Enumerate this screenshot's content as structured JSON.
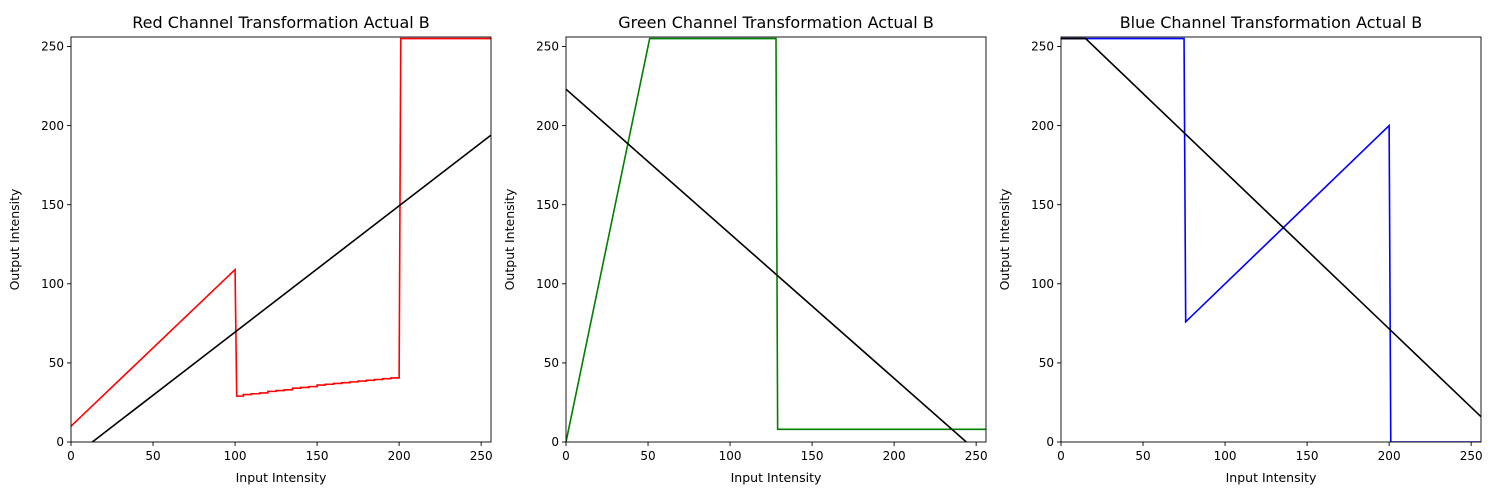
{
  "chart_data": [
    {
      "type": "line",
      "title": "Red Channel Transformation Actual B",
      "xlabel": "Input Intensity",
      "ylabel": "Output Intensity",
      "xlim": [
        0,
        256
      ],
      "ylim": [
        0,
        256
      ],
      "xticks": [
        0,
        50,
        100,
        150,
        200,
        250
      ],
      "yticks": [
        0,
        50,
        100,
        150,
        200,
        250
      ],
      "grid": false,
      "series": [
        {
          "color": "#ff0000",
          "x": [
            0,
            100,
            101,
            105,
            105,
            110,
            110,
            115,
            115,
            120,
            120,
            125,
            125,
            130,
            130,
            135,
            135,
            140,
            140,
            145,
            145,
            150,
            150,
            155,
            155,
            160,
            160,
            165,
            165,
            170,
            170,
            175,
            175,
            180,
            180,
            185,
            185,
            190,
            190,
            195,
            195,
            199,
            200,
            201,
            256
          ],
          "y": [
            10,
            109,
            29,
            29,
            30,
            30,
            30.5,
            30.5,
            31,
            31,
            32,
            32,
            32.5,
            32.5,
            33,
            33,
            34,
            34,
            34.5,
            34.5,
            35,
            35,
            36,
            36,
            36.5,
            36.5,
            37,
            37,
            37.5,
            37.5,
            38,
            38,
            38.5,
            38.5,
            39,
            39,
            39.5,
            39.5,
            40,
            40,
            40.5,
            40.5,
            40.5,
            255,
            255
          ]
        },
        {
          "color": "#000000",
          "x": [
            13,
            256
          ],
          "y": [
            0,
            194
          ]
        }
      ]
    },
    {
      "type": "line",
      "title": "Green Channel Transformation Actual B",
      "xlabel": "Input Intensity",
      "ylabel": "Output Intensity",
      "xlim": [
        0,
        256
      ],
      "ylim": [
        0,
        256
      ],
      "xticks": [
        0,
        50,
        100,
        150,
        200,
        250
      ],
      "yticks": [
        0,
        50,
        100,
        150,
        200,
        250
      ],
      "grid": false,
      "series": [
        {
          "color": "#008000",
          "x": [
            0,
            51,
            128,
            129,
            256
          ],
          "y": [
            0,
            255,
            255,
            8,
            8
          ]
        },
        {
          "color": "#000000",
          "x": [
            0,
            244
          ],
          "y": [
            223,
            0
          ]
        }
      ]
    },
    {
      "type": "line",
      "title": "Blue Channel Transformation Actual B",
      "xlabel": "Input Intensity",
      "ylabel": "Output Intensity",
      "xlim": [
        0,
        256
      ],
      "ylim": [
        0,
        256
      ],
      "xticks": [
        0,
        50,
        100,
        150,
        200,
        250
      ],
      "yticks": [
        0,
        50,
        100,
        150,
        200,
        250
      ],
      "grid": false,
      "series": [
        {
          "color": "#0000ff",
          "x": [
            0,
            75,
            76,
            200,
            201,
            256
          ],
          "y": [
            255,
            255,
            76,
            200,
            0,
            0
          ]
        },
        {
          "color": "#000000",
          "x": [
            0,
            15,
            256
          ],
          "y": [
            255,
            255,
            16
          ]
        }
      ]
    }
  ]
}
